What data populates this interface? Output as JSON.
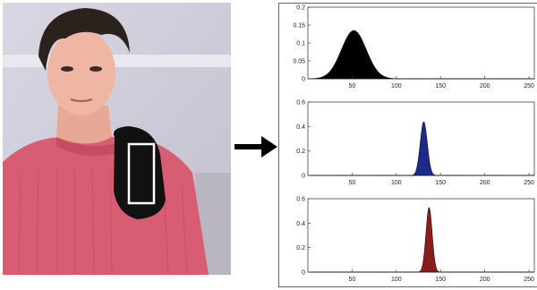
{
  "figure": {
    "photo": {
      "description_icon": "person-photo-with-hand-roi"
    },
    "arrow": {
      "icon": "right-arrow-icon",
      "color": "#000000"
    }
  },
  "chart_data": [
    {
      "type": "area",
      "x_range": [
        0,
        256
      ],
      "ylim": [
        0,
        0.2
      ],
      "y_ticks": [
        "0.2",
        "0.15",
        "0.1",
        "0.05",
        "0"
      ],
      "x_ticks": [
        "50",
        "100",
        "150",
        "200",
        "250"
      ],
      "series": [
        {
          "distribution": "gaussian",
          "mean": 52,
          "std": 14,
          "peak": 0.135,
          "color": "#000000"
        }
      ],
      "grid": false
    },
    {
      "type": "area",
      "x_range": [
        0,
        256
      ],
      "ylim": [
        0,
        0.6
      ],
      "y_ticks": [
        "0.6",
        "0.4",
        "0.2",
        "0"
      ],
      "x_ticks": [
        "50",
        "100",
        "150",
        "200",
        "250"
      ],
      "series": [
        {
          "distribution": "gaussian",
          "mean": 131,
          "std": 4,
          "peak": 0.44,
          "color": "#1c2a8a"
        }
      ],
      "grid": false
    },
    {
      "type": "area",
      "x_range": [
        0,
        256
      ],
      "ylim": [
        0,
        0.6
      ],
      "y_ticks": [
        "0.6",
        "0.4",
        "0.2",
        "0"
      ],
      "x_ticks": [
        "50",
        "100",
        "150",
        "200",
        "250"
      ],
      "series": [
        {
          "distribution": "gaussian",
          "mean": 137,
          "std": 3.5,
          "peak": 0.53,
          "color": "#8a1c1c"
        }
      ],
      "grid": false
    }
  ]
}
